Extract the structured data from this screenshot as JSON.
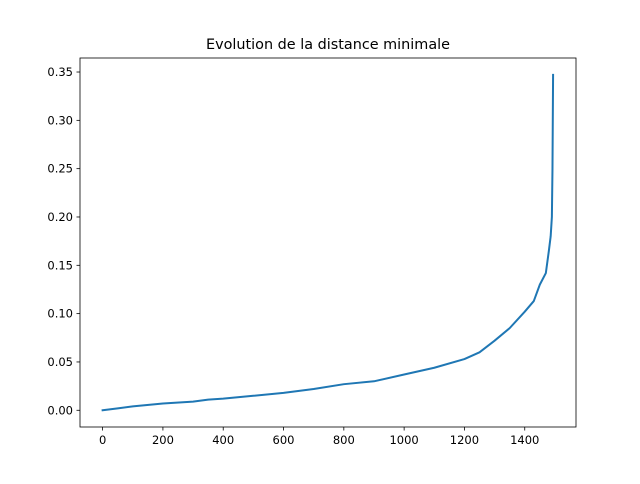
{
  "chart_data": {
    "type": "line",
    "title": "Evolution de la distance minimale",
    "xlabel": "",
    "ylabel": "",
    "xlim": [
      -75,
      1570
    ],
    "ylim": [
      -0.0173,
      0.3645
    ],
    "xticks": [
      0,
      200,
      400,
      600,
      800,
      1000,
      1200,
      1400
    ],
    "xtick_labels": [
      "0",
      "200",
      "400",
      "600",
      "800",
      "1000",
      "1200",
      "1400"
    ],
    "yticks": [
      0,
      0.05,
      0.1,
      0.15,
      0.2,
      0.25,
      0.3,
      0.35
    ],
    "ytick_labels": [
      "0.00",
      "0.05",
      "0.10",
      "0.15",
      "0.20",
      "0.25",
      "0.30",
      "0.35"
    ],
    "grid": false,
    "series": [
      {
        "color": "#1f77b4",
        "x": [
          0,
          50,
          100,
          200,
          300,
          350,
          400,
          500,
          600,
          700,
          800,
          900,
          1000,
          1100,
          1200,
          1250,
          1300,
          1350,
          1400,
          1430,
          1450,
          1470,
          1480,
          1486,
          1490,
          1492,
          1494
        ],
        "y": [
          0.0,
          0.002,
          0.004,
          0.007,
          0.009,
          0.011,
          0.012,
          0.015,
          0.018,
          0.022,
          0.027,
          0.03,
          0.037,
          0.044,
          0.053,
          0.06,
          0.072,
          0.085,
          0.102,
          0.113,
          0.13,
          0.142,
          0.165,
          0.18,
          0.2,
          0.25,
          0.347
        ]
      }
    ]
  }
}
